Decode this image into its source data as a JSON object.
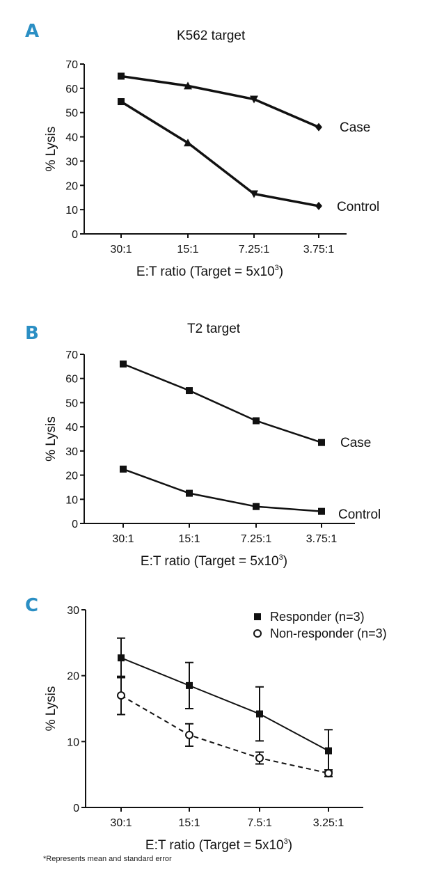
{
  "chart_data": [
    {
      "panel": "A",
      "type": "line",
      "title": "K562 target",
      "xlabel": "E:T ratio (Target = 5x10",
      "xlabel_sup": "3",
      "xlabel_end": ")",
      "ylabel": "% Lysis",
      "categories": [
        "30:1",
        "15:1",
        "7.25:1",
        "3.75:1"
      ],
      "ylim": [
        0,
        70
      ],
      "yticks": [
        0,
        10,
        20,
        30,
        40,
        50,
        60,
        70
      ],
      "series": [
        {
          "name": "Case",
          "values": [
            65,
            61,
            55.5,
            44
          ],
          "markers": [
            "square",
            "triangle",
            "triangle-down",
            "diamond"
          ]
        },
        {
          "name": "Control",
          "values": [
            54.5,
            37.5,
            16.5,
            11.5
          ],
          "markers": [
            "square",
            "triangle",
            "triangle-down",
            "diamond"
          ]
        }
      ]
    },
    {
      "panel": "B",
      "type": "line",
      "title": "T2 target",
      "xlabel": "E:T ratio (Target = 5x10",
      "xlabel_sup": "3",
      "xlabel_end": ")",
      "ylabel": "% Lysis",
      "categories": [
        "30:1",
        "15:1",
        "7.25:1",
        "3.75:1"
      ],
      "ylim": [
        0,
        70
      ],
      "yticks": [
        0,
        10,
        20,
        30,
        40,
        50,
        60,
        70
      ],
      "series": [
        {
          "name": "Case",
          "values": [
            66,
            55,
            42.5,
            33.5
          ],
          "markers": [
            "square",
            "square",
            "square",
            "square"
          ]
        },
        {
          "name": "Control",
          "values": [
            22.5,
            12.5,
            7,
            5
          ],
          "markers": [
            "square",
            "square",
            "square",
            "square"
          ]
        }
      ]
    },
    {
      "panel": "C",
      "type": "line",
      "title": "",
      "xlabel": "E:T ratio (Target = 5x10",
      "xlabel_sup": "3",
      "xlabel_end": ")",
      "ylabel": "% Lysis",
      "categories": [
        "30:1",
        "15:1",
        "7.5:1",
        "3.25:1"
      ],
      "ylim": [
        0,
        30
      ],
      "yticks": [
        0,
        10,
        20,
        30
      ],
      "legend": "top-right",
      "series": [
        {
          "name": "Responder (n=3)",
          "values": [
            22.7,
            18.5,
            14.2,
            8.6
          ],
          "errors": [
            3,
            3.5,
            4.1,
            3.2
          ],
          "marker": "filled-square",
          "line": "solid"
        },
        {
          "name": "Non-responder (n=3)",
          "values": [
            17,
            11,
            7.5,
            5.2
          ],
          "errors": [
            2.9,
            1.7,
            0.9,
            0.5
          ],
          "marker": "open-circle",
          "line": "dashed"
        }
      ]
    }
  ],
  "footnote": "*Represents mean and standard error"
}
